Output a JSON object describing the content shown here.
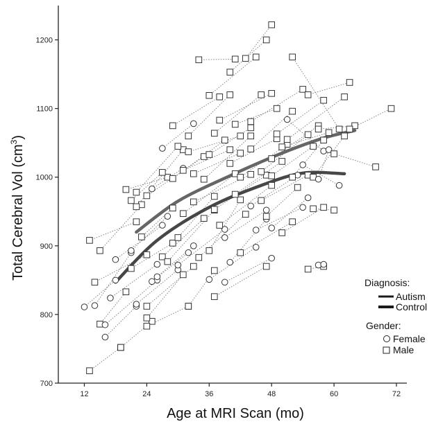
{
  "chart_data": {
    "type": "scatter",
    "xlabel": "Age at MRI Scan (mo)",
    "ylabel_main": "Total Cerebral Vol (cm",
    "ylabel_sup": "3",
    "ylabel_close": ")",
    "xlim": [
      7,
      74
    ],
    "ylim": [
      700,
      1250
    ],
    "xticks": [
      12,
      24,
      36,
      48,
      60,
      72
    ],
    "yticks": [
      700,
      800,
      900,
      1000,
      1100,
      1200
    ],
    "grid": false,
    "legend": {
      "position": "right",
      "diagnosis_title": "Diagnosis:",
      "diagnosis_items": [
        "Autism",
        "Control"
      ],
      "gender_title": "Gender:",
      "gender_items": [
        "Female",
        "Male"
      ]
    },
    "series": [
      {
        "name": "Autism",
        "x": [
          22,
          30,
          40,
          50,
          58,
          64
        ],
        "y": [
          920,
          965,
          1002,
          1035,
          1057,
          1068
        ]
      },
      {
        "name": "Control",
        "x": [
          18,
          26,
          36,
          46,
          54,
          62
        ],
        "y": [
          847,
          908,
          956,
          988,
          1006,
          1005
        ]
      }
    ],
    "subjects": [
      {
        "gender": "M",
        "x": [
          13,
          22
        ],
        "y": [
          908,
          935
        ]
      },
      {
        "gender": "M",
        "x": [
          13,
          19
        ],
        "y": [
          718,
          752
        ]
      },
      {
        "gender": "F",
        "x": [
          12,
          18
        ],
        "y": [
          811,
          850
        ]
      },
      {
        "gender": "M",
        "x": [
          14,
          24
        ],
        "y": [
          847,
          887
        ]
      },
      {
        "gender": "M",
        "x": [
          15,
          23
        ],
        "y": [
          893,
          960
        ]
      },
      {
        "gender": "F",
        "x": [
          14,
          21
        ],
        "y": [
          813,
          890
        ]
      },
      {
        "gender": "M",
        "x": [
          15,
          20
        ],
        "y": [
          786,
          833
        ]
      },
      {
        "gender": "F",
        "x": [
          16,
          26
        ],
        "y": [
          785,
          850
        ]
      },
      {
        "gender": "F",
        "x": [
          16,
          22
        ],
        "y": [
          767,
          812
        ]
      },
      {
        "gender": "M",
        "x": [
          19,
          25
        ],
        "y": [
          752,
          790
        ]
      },
      {
        "gender": "F",
        "x": [
          17,
          26
        ],
        "y": [
          824,
          873
        ]
      },
      {
        "gender": "F",
        "x": [
          18,
          27
        ],
        "y": [
          880,
          930
        ]
      },
      {
        "gender": "M",
        "x": [
          20,
          28
        ],
        "y": [
          982,
          1000
        ]
      },
      {
        "gender": "M",
        "x": [
          21,
          27
        ],
        "y": [
          966,
          1007
        ]
      },
      {
        "gender": "M",
        "x": [
          22,
          31
        ],
        "y": [
          957,
          1040
        ]
      },
      {
        "gender": "F",
        "x": [
          21,
          28
        ],
        "y": [
          893,
          943
        ]
      },
      {
        "gender": "F",
        "x": [
          22,
          30
        ],
        "y": [
          815,
          865
        ]
      },
      {
        "gender": "M",
        "x": [
          21,
          29
        ],
        "y": [
          867,
          904
        ]
      },
      {
        "gender": "M",
        "x": [
          22,
          30
        ],
        "y": [
          978,
          1045
        ]
      },
      {
        "gender": "M",
        "x": [
          24,
          32
        ],
        "y": [
          783,
          812
        ]
      },
      {
        "gender": "M",
        "x": [
          24,
          33
        ],
        "y": [
          812,
          870
        ]
      },
      {
        "gender": "M",
        "x": [
          24,
          31
        ],
        "y": [
          795,
          858
        ]
      },
      {
        "gender": "F",
        "x": [
          25,
          32
        ],
        "y": [
          848,
          890
        ]
      },
      {
        "gender": "F",
        "x": [
          26,
          33
        ],
        "y": [
          855,
          900
        ]
      },
      {
        "gender": "M",
        "x": [
          23,
          29
        ],
        "y": [
          913,
          955
        ]
      },
      {
        "gender": "F",
        "x": [
          25,
          31
        ],
        "y": [
          983,
          1013
        ]
      },
      {
        "gender": "M",
        "x": [
          24,
          35
        ],
        "y": [
          973,
          1030
        ]
      },
      {
        "gender": "F",
        "x": [
          27,
          33
        ],
        "y": [
          1042,
          1078
        ]
      },
      {
        "gender": "M",
        "x": [
          27,
          35
        ],
        "y": [
          884,
          940
        ]
      },
      {
        "gender": "M",
        "x": [
          28,
          37
        ],
        "y": [
          877,
          952
        ]
      },
      {
        "gender": "M",
        "x": [
          29,
          38
        ],
        "y": [
          1075,
          1117
        ]
      },
      {
        "gender": "M",
        "x": [
          29,
          39
        ],
        "y": [
          998,
          1054
        ]
      },
      {
        "gender": "M",
        "x": [
          30,
          37
        ],
        "y": [
          912,
          972
        ]
      },
      {
        "gender": "F",
        "x": [
          30,
          39
        ],
        "y": [
          872,
          924
        ]
      },
      {
        "gender": "M",
        "x": [
          31,
          40
        ],
        "y": [
          1010,
          1040
        ]
      },
      {
        "gender": "M",
        "x": [
          31,
          41
        ],
        "y": [
          947,
          1005
        ]
      },
      {
        "gender": "M",
        "x": [
          32,
          40
        ],
        "y": [
          1060,
          1120
        ]
      },
      {
        "gender": "M",
        "x": [
          32,
          42
        ],
        "y": [
          1037,
          1060
        ]
      },
      {
        "gender": "M",
        "x": [
          33,
          42
        ],
        "y": [
          1005,
          1035
        ]
      },
      {
        "gender": "M",
        "x": [
          33,
          44
        ],
        "y": [
          964,
          1004
        ]
      },
      {
        "gender": "M",
        "x": [
          32,
          37
        ],
        "y": [
          812,
          864
        ]
      },
      {
        "gender": "M",
        "x": [
          34,
          43
        ],
        "y": [
          883,
          946
        ]
      },
      {
        "gender": "M",
        "x": [
          34,
          41
        ],
        "y": [
          1171,
          1172
        ]
      },
      {
        "gender": "M",
        "x": [
          35,
          44
        ],
        "y": [
          997,
          1060
        ]
      },
      {
        "gender": "M",
        "x": [
          36,
          45
        ],
        "y": [
          1119,
          1175
        ]
      },
      {
        "gender": "M",
        "x": [
          36,
          44
        ],
        "y": [
          1033,
          1072
        ]
      },
      {
        "gender": "M",
        "x": [
          37,
          46
        ],
        "y": [
          1064,
          1120
        ]
      },
      {
        "gender": "M",
        "x": [
          37,
          47
        ],
        "y": [
          953,
          1003
        ]
      },
      {
        "gender": "M",
        "x": [
          36,
          42
        ],
        "y": [
          893,
          967
        ]
      },
      {
        "gender": "F",
        "x": [
          36,
          45
        ],
        "y": [
          851,
          898
        ]
      },
      {
        "gender": "M",
        "x": [
          37,
          47
        ],
        "y": [
          826,
          870
        ]
      },
      {
        "gender": "M",
        "x": [
          38,
          48
        ],
        "y": [
          1083,
          1122
        ]
      },
      {
        "gender": "M",
        "x": [
          38,
          48
        ],
        "y": [
          930,
          988
        ]
      },
      {
        "gender": "F",
        "x": [
          39,
          47
        ],
        "y": [
          912,
          952
        ]
      },
      {
        "gender": "F",
        "x": [
          39,
          48
        ],
        "y": [
          847,
          882
        ]
      },
      {
        "gender": "M",
        "x": [
          40,
          47
        ],
        "y": [
          1153,
          1200
        ]
      },
      {
        "gender": "M",
        "x": [
          40,
          49
        ],
        "y": [
          1020,
          1056
        ]
      },
      {
        "gender": "M",
        "x": [
          41,
          49
        ],
        "y": [
          1077,
          1100
        ]
      },
      {
        "gender": "F",
        "x": [
          40,
          47
        ],
        "y": [
          876,
          939
        ]
      },
      {
        "gender": "M",
        "x": [
          41,
          50
        ],
        "y": [
          975,
          1023
        ]
      },
      {
        "gender": "M",
        "x": [
          42,
          51
        ],
        "y": [
          1000,
          1048
        ]
      },
      {
        "gender": "M",
        "x": [
          42,
          52
        ],
        "y": [
          890,
          935
        ]
      },
      {
        "gender": "M",
        "x": [
          43,
          48
        ],
        "y": [
          1173,
          1222
        ]
      },
      {
        "gender": "M",
        "x": [
          44,
          52
        ],
        "y": [
          1041,
          1096
        ]
      },
      {
        "gender": "F",
        "x": [
          44,
          53
        ],
        "y": [
          958,
          1003
        ]
      },
      {
        "gender": "M",
        "x": [
          44,
          54
        ],
        "y": [
          1081,
          1128
        ]
      },
      {
        "gender": "F",
        "x": [
          45,
          54
        ],
        "y": [
          923,
          956
        ]
      },
      {
        "gender": "M",
        "x": [
          46,
          55
        ],
        "y": [
          1008,
          1062
        ]
      },
      {
        "gender": "M",
        "x": [
          46,
          55
        ],
        "y": [
          966,
          1003
        ]
      },
      {
        "gender": "M",
        "x": [
          47,
          53
        ],
        "y": [
          943,
          985
        ]
      },
      {
        "gender": "M",
        "x": [
          48,
          57
        ],
        "y": [
          1027,
          1075
        ]
      },
      {
        "gender": "M",
        "x": [
          48,
          56
        ],
        "y": [
          1002,
          1045
        ]
      },
      {
        "gender": "F",
        "x": [
          48,
          55
        ],
        "y": [
          926,
          970
        ]
      },
      {
        "gender": "M",
        "x": [
          49,
          58
        ],
        "y": [
          1063,
          1112
        ]
      },
      {
        "gender": "M",
        "x": [
          50,
          59
        ],
        "y": [
          1044,
          1065
        ]
      },
      {
        "gender": "M",
        "x": [
          50,
          58
        ],
        "y": [
          919,
          956
        ]
      },
      {
        "gender": "F",
        "x": [
          51,
          58
        ],
        "y": [
          1084,
          1038
        ]
      },
      {
        "gender": "M",
        "x": [
          51,
          62
        ],
        "y": [
          1055,
          1117
        ]
      },
      {
        "gender": "M",
        "x": [
          52,
          61
        ],
        "y": [
          1175,
          1070
        ]
      },
      {
        "gender": "M",
        "x": [
          52,
          58
        ],
        "y": [
          1000,
          1054
        ]
      },
      {
        "gender": "F",
        "x": [
          54,
          61
        ],
        "y": [
          1018,
          988
        ]
      },
      {
        "gender": "M",
        "x": [
          55,
          63
        ],
        "y": [
          1120,
          1138
        ]
      },
      {
        "gender": "M",
        "x": [
          55,
          58
        ],
        "y": [
          866,
          870
        ]
      },
      {
        "gender": "M",
        "x": [
          56,
          60
        ],
        "y": [
          954,
          952
        ]
      },
      {
        "gender": "M",
        "x": [
          56,
          62
        ],
        "y": [
          1000,
          1060
        ]
      },
      {
        "gender": "M",
        "x": [
          57,
          64
        ],
        "y": [
          1070,
          1075
        ]
      },
      {
        "gender": "F",
        "x": [
          57,
          59
        ],
        "y": [
          997,
          1040
        ]
      },
      {
        "gender": "F",
        "x": [
          57,
          58
        ],
        "y": [
          872,
          873
        ]
      },
      {
        "gender": "M",
        "x": [
          60,
          68
        ],
        "y": [
          1034,
          1015
        ]
      },
      {
        "gender": "M",
        "x": [
          63,
          71
        ],
        "y": [
          1070,
          1100
        ]
      }
    ]
  }
}
